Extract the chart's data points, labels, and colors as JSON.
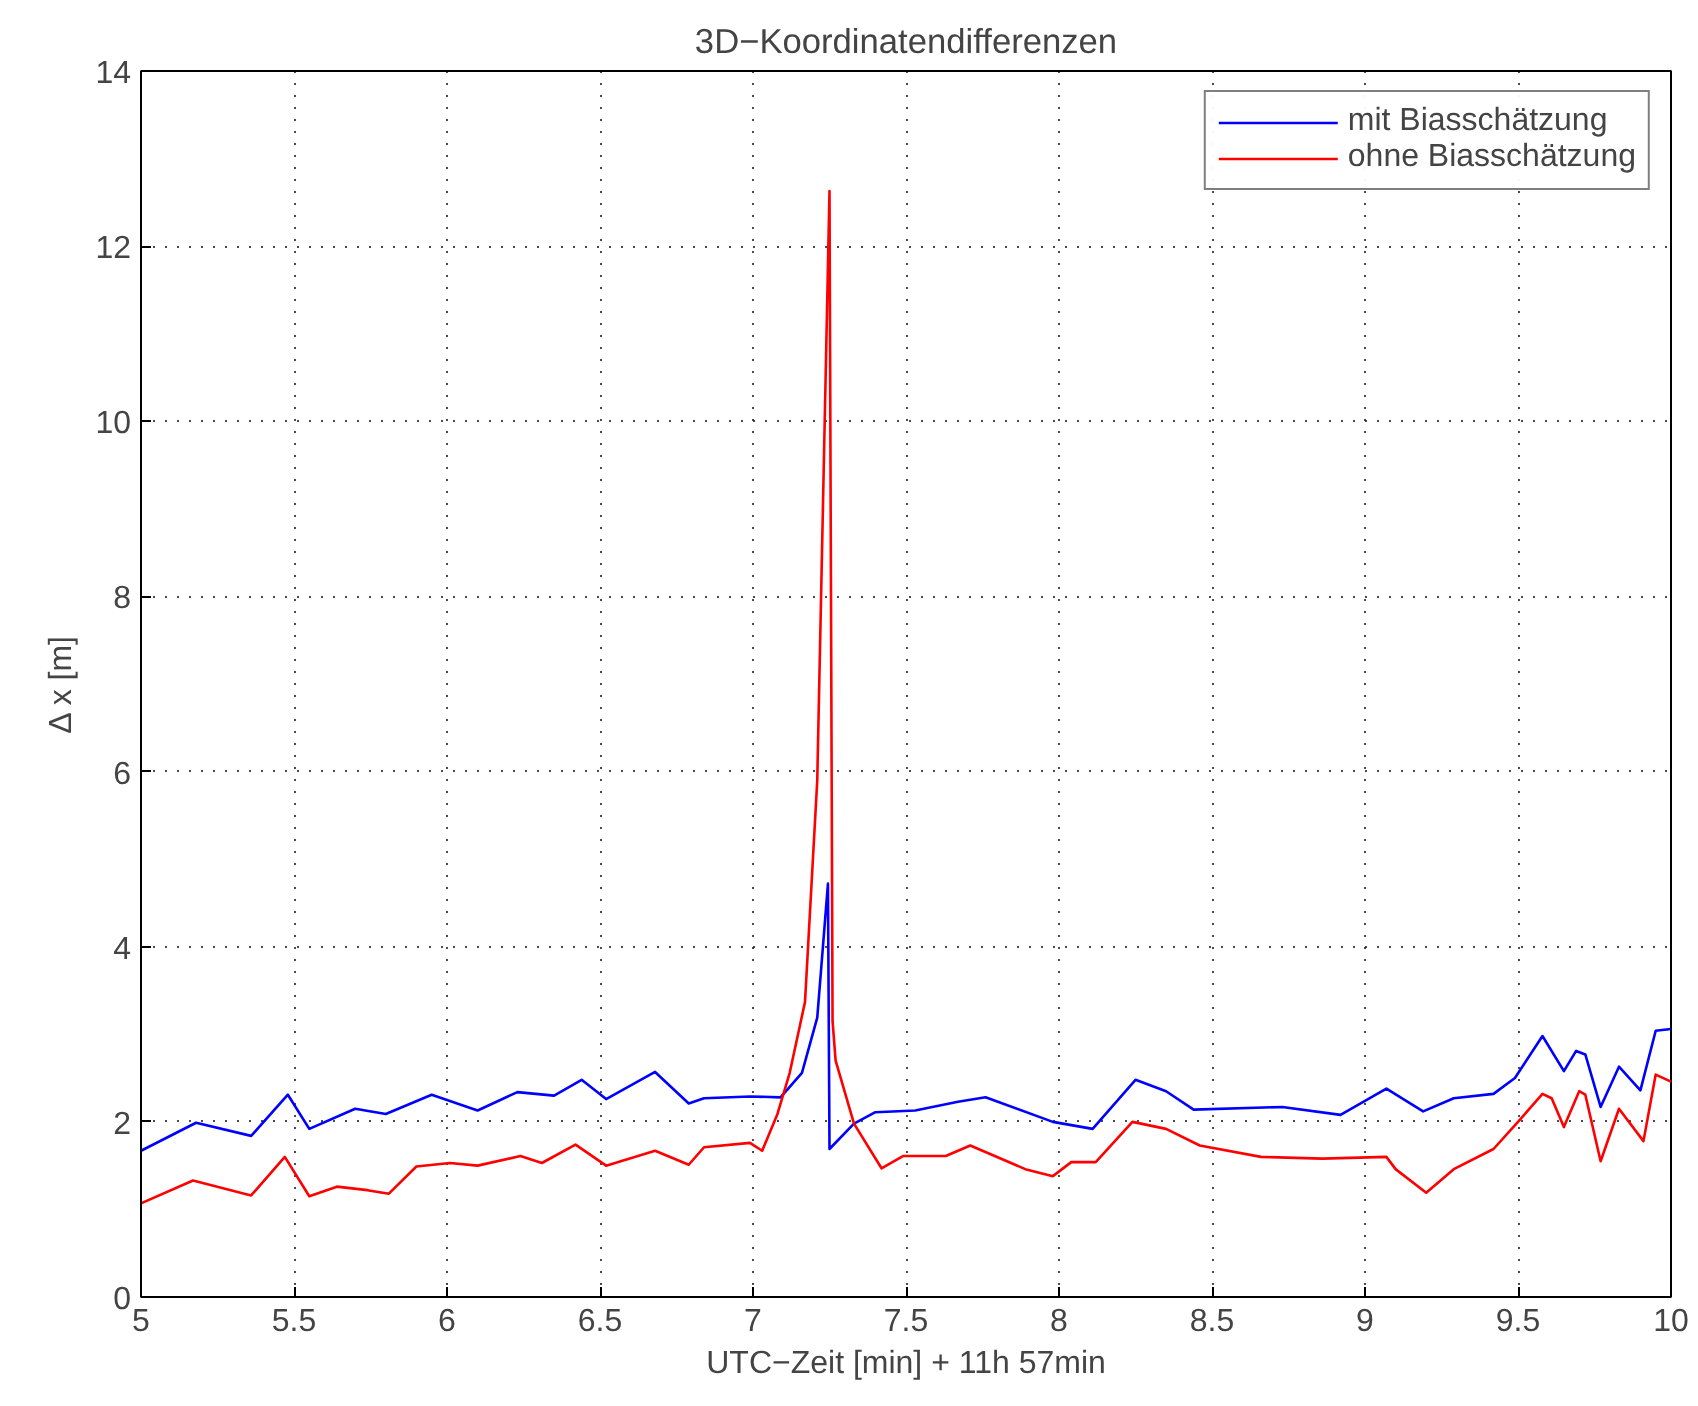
{
  "chart_data": {
    "type": "line",
    "title": "3D−Koordinatendifferenzen",
    "xlabel": "UTC−Zeit [min] + 11h 57min",
    "ylabel": "Δ x [m]",
    "xlim": [
      5,
      10
    ],
    "ylim": [
      0,
      14
    ],
    "xticks": [
      5,
      5.5,
      6,
      6.5,
      7,
      7.5,
      8,
      8.5,
      9,
      9.5,
      10
    ],
    "yticks": [
      0,
      2,
      4,
      6,
      8,
      10,
      12,
      14
    ],
    "grid": true,
    "legend": "top right",
    "line_style": "solid",
    "marker": "none",
    "series": [
      {
        "name": "mit Biasschätzung",
        "color": "#0000ff",
        "x": [
          5.0,
          5.18,
          5.36,
          5.48,
          5.55,
          5.7,
          5.8,
          5.95,
          6.1,
          6.23,
          6.35,
          6.44,
          6.52,
          6.68,
          6.79,
          6.84,
          6.99,
          7.09,
          7.16,
          7.21,
          7.245,
          7.25,
          7.33,
          7.4,
          7.53,
          7.67,
          7.76,
          7.98,
          8.11,
          8.25,
          8.35,
          8.44,
          8.73,
          8.92,
          9.07,
          9.12,
          9.19,
          9.29,
          9.42,
          9.49,
          9.58,
          9.65,
          9.69,
          9.72,
          9.77,
          9.83,
          9.9,
          9.95,
          10.0
        ],
        "values": [
          1.67,
          1.99,
          1.84,
          2.31,
          1.92,
          2.15,
          2.09,
          2.31,
          2.13,
          2.34,
          2.3,
          2.48,
          2.26,
          2.57,
          2.21,
          2.27,
          2.29,
          2.28,
          2.56,
          3.19,
          4.72,
          1.69,
          1.98,
          2.11,
          2.13,
          2.23,
          2.28,
          2.0,
          1.92,
          2.48,
          2.35,
          2.14,
          2.17,
          2.08,
          2.38,
          2.27,
          2.12,
          2.27,
          2.32,
          2.5,
          2.98,
          2.58,
          2.81,
          2.77,
          2.17,
          2.63,
          2.36,
          3.04,
          3.06
        ]
      },
      {
        "name": "ohne Biasschätzung",
        "color": "#ff0000",
        "x": [
          5.0,
          5.17,
          5.36,
          5.47,
          5.55,
          5.64,
          5.74,
          5.81,
          5.9,
          6.01,
          6.1,
          6.24,
          6.31,
          6.42,
          6.52,
          6.68,
          6.79,
          6.84,
          6.99,
          7.03,
          7.08,
          7.12,
          7.17,
          7.21,
          7.25,
          7.26,
          7.27,
          7.33,
          7.42,
          7.49,
          7.63,
          7.71,
          7.79,
          7.89,
          7.98,
          8.04,
          8.12,
          8.24,
          8.35,
          8.46,
          8.66,
          8.86,
          9.07,
          9.1,
          9.2,
          9.29,
          9.42,
          9.5,
          9.58,
          9.61,
          9.65,
          9.7,
          9.72,
          9.77,
          9.83,
          9.91,
          9.95,
          10.0
        ],
        "values": [
          1.07,
          1.33,
          1.16,
          1.6,
          1.15,
          1.26,
          1.22,
          1.18,
          1.49,
          1.53,
          1.5,
          1.61,
          1.53,
          1.74,
          1.5,
          1.67,
          1.51,
          1.71,
          1.76,
          1.67,
          2.09,
          2.56,
          3.37,
          5.9,
          12.63,
          3.15,
          2.7,
          1.98,
          1.47,
          1.61,
          1.61,
          1.73,
          1.61,
          1.46,
          1.38,
          1.54,
          1.54,
          2.0,
          1.92,
          1.73,
          1.6,
          1.58,
          1.6,
          1.46,
          1.19,
          1.46,
          1.69,
          2.0,
          2.32,
          2.27,
          1.94,
          2.35,
          2.31,
          1.55,
          2.15,
          1.78,
          2.54,
          2.46
        ]
      }
    ]
  }
}
